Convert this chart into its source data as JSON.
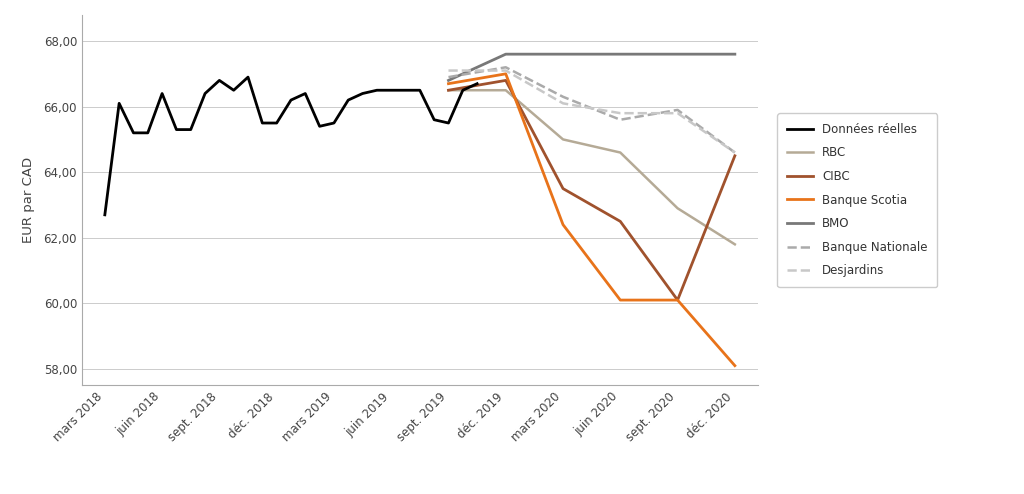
{
  "x_labels": [
    "mars 2018",
    "juin 2018",
    "sept. 2018",
    "déc. 2018",
    "mars 2019",
    "juin 2019",
    "sept. 2019",
    "déc. 2019",
    "mars 2020",
    "juin 2020",
    "sept. 2020",
    "déc. 2020"
  ],
  "ylabel": "EUR par CAD",
  "ylim": [
    57.5,
    68.8
  ],
  "yticks": [
    58.0,
    60.0,
    62.0,
    64.0,
    66.0,
    68.0
  ],
  "ytick_labels": [
    "58,00",
    "60,00",
    "62,00",
    "64,00",
    "66,00",
    "68,00"
  ],
  "background_color": "#ffffff",
  "grid_color": "#cccccc",
  "donnees_x": [
    0,
    0.25,
    0.5,
    0.75,
    1.0,
    1.25,
    1.5,
    1.75,
    2.0,
    2.25,
    2.5,
    2.75,
    3.0,
    3.25,
    3.5,
    3.75,
    4.0,
    4.25,
    4.5,
    4.75,
    5.0,
    5.25,
    5.5,
    5.75,
    6.0,
    6.25,
    6.5
  ],
  "donnees_y": [
    62.7,
    66.1,
    65.2,
    65.2,
    66.4,
    65.3,
    65.3,
    66.4,
    66.8,
    66.5,
    66.9,
    65.5,
    65.5,
    66.2,
    66.4,
    65.4,
    65.5,
    66.2,
    66.4,
    66.5,
    66.5,
    66.5,
    66.5,
    65.6,
    65.5,
    66.5,
    66.7
  ],
  "series": [
    {
      "label": "RBC",
      "color": "#b5aa96",
      "linestyle": "-",
      "linewidth": 1.8,
      "x": [
        6,
        7,
        8,
        9,
        10,
        11
      ],
      "y": [
        66.5,
        66.5,
        65.0,
        64.6,
        62.9,
        61.8
      ]
    },
    {
      "label": "CIBC",
      "color": "#a0522d",
      "linestyle": "-",
      "linewidth": 2.0,
      "x": [
        6,
        7,
        8,
        9,
        10,
        11
      ],
      "y": [
        66.5,
        66.8,
        63.5,
        62.5,
        60.1,
        64.5
      ]
    },
    {
      "label": "Banque Scotia",
      "color": "#e8731a",
      "linestyle": "-",
      "linewidth": 2.0,
      "x": [
        6,
        7,
        8,
        9,
        10,
        11
      ],
      "y": [
        66.7,
        67.0,
        62.4,
        60.1,
        60.1,
        58.1
      ]
    },
    {
      "label": "BMO",
      "color": "#787878",
      "linestyle": "-",
      "linewidth": 2.0,
      "x": [
        6,
        7,
        8,
        9,
        10,
        11
      ],
      "y": [
        66.8,
        67.6,
        67.6,
        67.6,
        67.6,
        67.6
      ]
    },
    {
      "label": "Banque Nationale",
      "color": "#aaaaaa",
      "linestyle": "--",
      "linewidth": 1.8,
      "x": [
        6,
        7,
        8,
        9,
        10,
        11
      ],
      "y": [
        66.9,
        67.2,
        66.3,
        65.6,
        65.9,
        64.6
      ]
    },
    {
      "label": "Desjardins",
      "color": "#c8c8c8",
      "linestyle": "--",
      "linewidth": 1.8,
      "x": [
        6,
        7,
        8,
        9,
        10,
        11
      ],
      "y": [
        67.1,
        67.1,
        66.1,
        65.8,
        65.8,
        64.6
      ]
    }
  ]
}
